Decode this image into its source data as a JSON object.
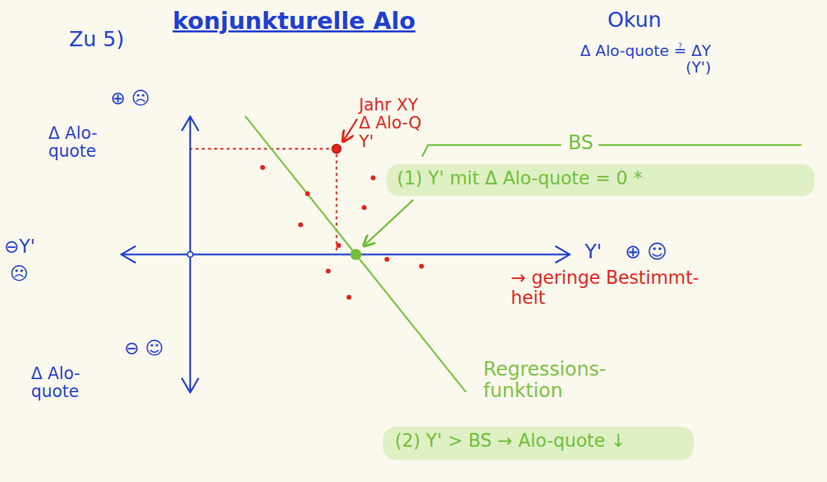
{
  "chart_data": {
    "type": "scatter",
    "heading": "Zu 5)",
    "title": "konjunkturelle Alo",
    "note": {
      "title": "Okun",
      "text": [
        "Δ Alo-quote ≟ ΔY",
        "(Y')"
      ]
    },
    "axes": {
      "color": "#1f3fd1",
      "y_top": [
        "⊕ ☹",
        "Δ Alo-",
        "quote"
      ],
      "y_bottom": [
        "⊖ ☺",
        "Δ Alo-",
        "quote"
      ],
      "x_right": [
        "Y'",
        "⊕ ☺"
      ],
      "x_left": [
        "⊖Y'",
        "☹"
      ]
    },
    "xlim": [
      -2,
      11
    ],
    "ylim": [
      -4,
      4
    ],
    "tick_labels": false,
    "x": [
      2.1,
      3.4,
      5.3,
      3.2,
      5.04,
      4.3,
      5.7,
      6.7,
      4.0,
      4.6
    ],
    "values": [
      2.52,
      1.76,
      2.22,
      0.86,
      1.36,
      0.26,
      -0.14,
      -0.34,
      -0.48,
      -1.24
    ],
    "color": "#e3241b",
    "highlight": {
      "x": 4.24,
      "y": 3.06,
      "text": [
        "Jahr XY",
        "Δ Alo-Q",
        "Y'"
      ]
    },
    "bs": {
      "x": 4.8,
      "y": 0,
      "label": "BS",
      "text": "(1) Y' mit Δ Alo-quote = 0 *",
      "color": "#6fbf3a"
    },
    "regression": {
      "x": [
        1.6,
        8
      ],
      "values": [
        4,
        -4
      ],
      "label": [
        "Regressions-",
        "funktion"
      ],
      "color": "#7cc242"
    },
    "annotations": [
      {
        "text": [
          "→ geringe Bestimmt-",
          "heit"
        ],
        "color": "#e3241b"
      },
      {
        "text": [
          "(2) Y' > BS → Alo-quote ↓"
        ],
        "color": "#6fbf3a"
      }
    ]
  }
}
